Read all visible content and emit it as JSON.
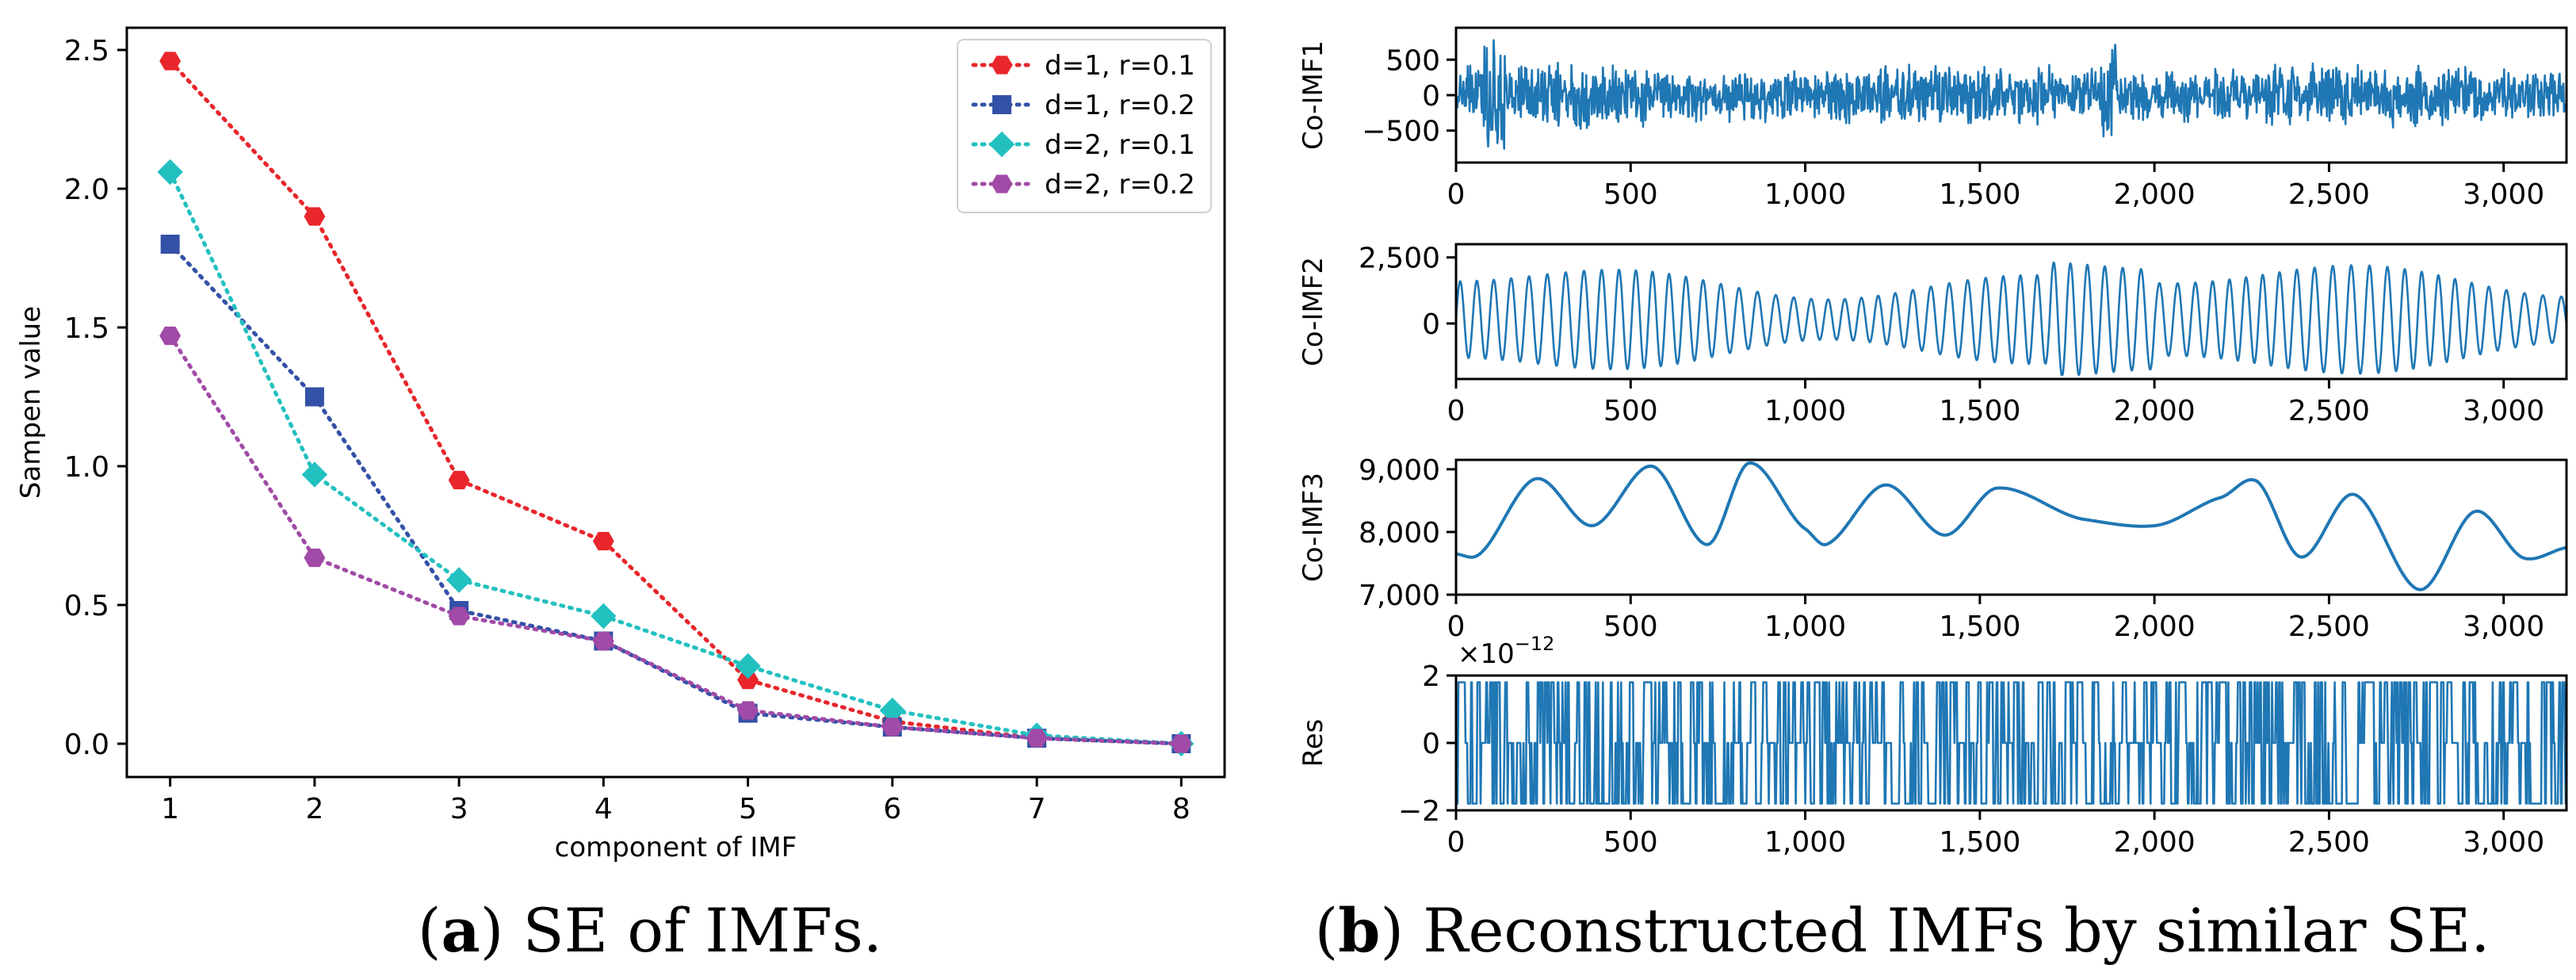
{
  "captions": {
    "a_label": "a",
    "a_text": " SE of IMFs.",
    "b_label": "b",
    "b_text": " Reconstructed IMFs by similar SE."
  },
  "colors": {
    "series_red": "#e8262b",
    "series_blue": "#3351a6",
    "series_cyan": "#23c0c0",
    "series_purple": "#a14aa7",
    "signal": "#1f77b4"
  },
  "chart_data": [
    {
      "type": "line",
      "title": "",
      "xlabel": "component of IMF",
      "ylabel": "Sampen value",
      "x": [
        1,
        2,
        3,
        4,
        5,
        6,
        7,
        8
      ],
      "xlim": [
        0.7,
        8.3
      ],
      "ylim": [
        -0.12,
        2.58
      ],
      "xticks": [
        "1",
        "2",
        "3",
        "4",
        "5",
        "6",
        "7",
        "8"
      ],
      "yticks": [
        "0.0",
        "0.5",
        "1.0",
        "1.5",
        "2.0",
        "2.5"
      ],
      "legend_position": "top-right",
      "series": [
        {
          "name": "d=1, r=0.1",
          "marker": "hexagon",
          "values": [
            2.46,
            1.9,
            0.95,
            0.73,
            0.23,
            0.08,
            0.02,
            0.0
          ]
        },
        {
          "name": "d=1, r=0.2",
          "marker": "square",
          "values": [
            1.8,
            1.25,
            0.48,
            0.37,
            0.11,
            0.06,
            0.02,
            0.0
          ]
        },
        {
          "name": "d=2, r=0.1",
          "marker": "diamond",
          "values": [
            2.06,
            0.97,
            0.59,
            0.46,
            0.28,
            0.12,
            0.03,
            0.0
          ]
        },
        {
          "name": "d=2, r=0.2",
          "marker": "hexagon",
          "values": [
            1.47,
            0.67,
            0.46,
            0.37,
            0.12,
            0.06,
            0.02,
            0.0
          ]
        }
      ]
    },
    {
      "type": "line",
      "ylabel": "Co-IMF1",
      "xlim": [
        0,
        3180
      ],
      "ylim": [
        -950,
        950
      ],
      "xticks": [
        "0",
        "500",
        "1,000",
        "1,500",
        "2,000",
        "2,500",
        "3,000"
      ],
      "yticks": [
        "−500",
        "0",
        "500"
      ],
      "signal": "noise-like high frequency component, amplitude about 500, range about -850 to 850, over 3180 samples"
    },
    {
      "type": "line",
      "ylabel": "Co-IMF2",
      "xlim": [
        0,
        3180
      ],
      "ylim": [
        -2100,
        3000
      ],
      "xticks": [
        "0",
        "500",
        "1,000",
        "1,500",
        "2,000",
        "2,500",
        "3,000"
      ],
      "yticks": [
        "0",
        "2,500"
      ],
      "signal": "oscillating component, period about 50 samples, range about -1900 to 2800"
    },
    {
      "type": "line",
      "ylabel": "Co-IMF3",
      "xlim": [
        0,
        3180
      ],
      "ylim": [
        7000,
        9150
      ],
      "xticks": [
        "0",
        "500",
        "1,000",
        "1,500",
        "2,000",
        "2,500",
        "3,000"
      ],
      "yticks": [
        "7,000",
        "8,000",
        "9,000"
      ],
      "signal": "smooth slow oscillation",
      "x": [
        0,
        60,
        230,
        390,
        560,
        720,
        840,
        1000,
        1060,
        1230,
        1400,
        1550,
        1800,
        2000,
        2190,
        2290,
        2420,
        2570,
        2760,
        2920,
        3060,
        3180
      ],
      "y": [
        7650,
        7620,
        8850,
        8100,
        9050,
        7800,
        9100,
        8050,
        7800,
        8750,
        7950,
        8700,
        8200,
        8100,
        8550,
        8820,
        7600,
        8600,
        7080,
        8330,
        7580,
        7750
      ]
    },
    {
      "type": "line",
      "ylabel": "Res",
      "xlim": [
        0,
        3180
      ],
      "ylim": [
        -2,
        2
      ],
      "y_scale_label": "×10",
      "y_scale_exponent": "−12",
      "xticks": [
        "0",
        "500",
        "1,000",
        "1,500",
        "2,000",
        "2,500",
        "3,000"
      ],
      "yticks": [
        "−2",
        "0",
        "2"
      ],
      "signal": "residual switching among -1.8e-12, 0 and 1.8e-12"
    }
  ]
}
